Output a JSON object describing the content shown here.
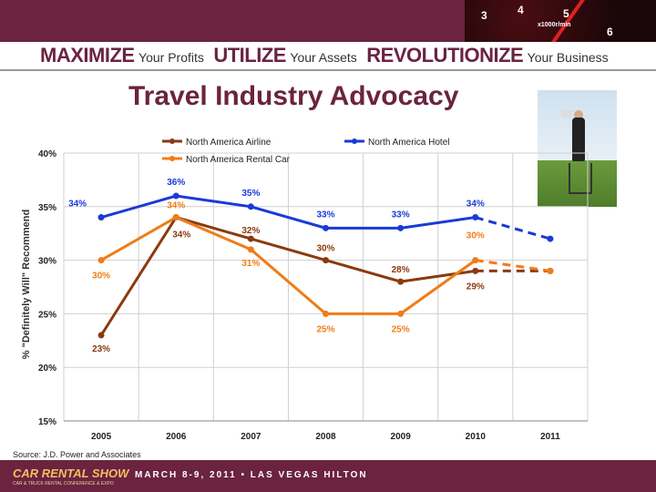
{
  "header": {
    "tagline": [
      {
        "strong": "MAXIMIZE",
        "soft": "Your Profits"
      },
      {
        "strong": "UTILIZE",
        "soft": "Your Assets"
      },
      {
        "strong": "REVOLUTIONIZE",
        "soft": "Your Business"
      }
    ],
    "speedo_ticks": [
      "3",
      "4",
      "5",
      "6",
      "x1000r/min"
    ]
  },
  "title": "Travel Industry Advocacy",
  "chart_data": {
    "type": "line",
    "ylabel": "% \"Definitely Will\" Recommend",
    "xlabel": "",
    "ylim": [
      15,
      40
    ],
    "yticks": [
      "15%",
      "20%",
      "25%",
      "30%",
      "35%",
      "40%"
    ],
    "categories": [
      "2005",
      "2006",
      "2007",
      "2008",
      "2009",
      "2010",
      "2011"
    ],
    "legend_position": "top",
    "series": [
      {
        "name": "North America Airline",
        "color": "#8a3a10",
        "values": [
          23,
          34,
          32,
          30,
          28,
          29,
          29
        ],
        "labels": [
          "23%",
          "34%",
          "32%",
          "30%",
          "28%",
          "29%",
          ""
        ],
        "dashed_from_index": 5
      },
      {
        "name": "North America Hotel",
        "color": "#1a3ad6",
        "values": [
          34,
          36,
          35,
          33,
          33,
          34,
          32
        ],
        "labels": [
          "34%",
          "36%",
          "35%",
          "33%",
          "33%",
          "34%",
          ""
        ],
        "dashed_from_index": 5
      },
      {
        "name": "North America Rental Car",
        "color": "#f07c18",
        "values": [
          30,
          34,
          31,
          25,
          25,
          30,
          29
        ],
        "labels": [
          "30%",
          "34%",
          "31%",
          "25%",
          "25%",
          "30%",
          ""
        ],
        "dashed_from_index": 5
      }
    ]
  },
  "source": "Source: J.D. Power and Associates",
  "footer": {
    "logo": "CAR RENTAL SHOW",
    "logo_sub": "CAR & TRUCK RENTAL CONFERENCE & EXPO",
    "event": "MARCH 8-9, 2011 • LAS VEGAS HILTON"
  }
}
